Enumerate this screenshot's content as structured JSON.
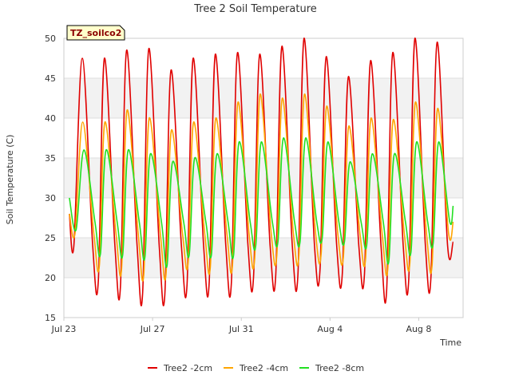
{
  "chart_data": {
    "type": "line",
    "title": "Tree 2 Soil Temperature",
    "xlabel": "Time",
    "ylabel": "Soil Temperature (C)",
    "badge": "TZ_soilco2",
    "ylim": [
      15,
      50
    ],
    "y_ticks": [
      15,
      20,
      25,
      30,
      35,
      40,
      45,
      50
    ],
    "x_range_days": [
      0,
      18
    ],
    "x_ticks": [
      {
        "day": 0,
        "label": "Jul 23"
      },
      {
        "day": 4,
        "label": "Jul 27"
      },
      {
        "day": 8,
        "label": "Jul 31"
      },
      {
        "day": 12,
        "label": "Aug 4"
      },
      {
        "day": 16,
        "label": "Aug 8"
      }
    ],
    "grid": true,
    "band_shading": true,
    "legend": "bottom",
    "series": [
      {
        "name": "Tree2 -2cm",
        "color": "#e00000",
        "points": [
          [
            0.25,
            28
          ],
          [
            0.45,
            24
          ],
          [
            0.83,
            47.5
          ],
          [
            1.3,
            24
          ],
          [
            1.55,
            19.5
          ],
          [
            1.83,
            47.5
          ],
          [
            2.3,
            24
          ],
          [
            2.55,
            18.8
          ],
          [
            2.83,
            48.5
          ],
          [
            3.3,
            24
          ],
          [
            3.55,
            18
          ],
          [
            3.83,
            48.7
          ],
          [
            4.3,
            24
          ],
          [
            4.55,
            17.8
          ],
          [
            4.83,
            46
          ],
          [
            5.3,
            24
          ],
          [
            5.55,
            19
          ],
          [
            5.83,
            47.5
          ],
          [
            6.3,
            24
          ],
          [
            6.55,
            19.2
          ],
          [
            6.83,
            48
          ],
          [
            7.3,
            24
          ],
          [
            7.55,
            19.2
          ],
          [
            7.83,
            48.2
          ],
          [
            8.3,
            24
          ],
          [
            8.55,
            20
          ],
          [
            8.83,
            48
          ],
          [
            9.3,
            24
          ],
          [
            9.55,
            20.2
          ],
          [
            9.83,
            49
          ],
          [
            10.3,
            24
          ],
          [
            10.55,
            20.3
          ],
          [
            10.83,
            50
          ],
          [
            11.3,
            24
          ],
          [
            11.55,
            21
          ],
          [
            11.83,
            47.7
          ],
          [
            12.3,
            24
          ],
          [
            12.55,
            20.3
          ],
          [
            12.83,
            45.2
          ],
          [
            13.3,
            24
          ],
          [
            13.55,
            20.3
          ],
          [
            13.83,
            47.2
          ],
          [
            14.3,
            24
          ],
          [
            14.55,
            18.3
          ],
          [
            14.83,
            48.2
          ],
          [
            15.3,
            24
          ],
          [
            15.55,
            19.7
          ],
          [
            15.83,
            50
          ],
          [
            16.3,
            24
          ],
          [
            16.55,
            20
          ],
          [
            16.83,
            49.5
          ],
          [
            17.3,
            24
          ],
          [
            17.55,
            24.5
          ]
        ]
      },
      {
        "name": "Tree2 -4cm",
        "color": "#ffa500",
        "points": [
          [
            0.25,
            28
          ],
          [
            0.5,
            25.5
          ],
          [
            0.85,
            39.5
          ],
          [
            1.35,
            25.5
          ],
          [
            1.6,
            21.5
          ],
          [
            1.85,
            39.5
          ],
          [
            2.35,
            25.5
          ],
          [
            2.6,
            21
          ],
          [
            2.85,
            41
          ],
          [
            3.35,
            25.5
          ],
          [
            3.6,
            20.3
          ],
          [
            3.85,
            40
          ],
          [
            4.35,
            25.5
          ],
          [
            4.6,
            20.3
          ],
          [
            4.85,
            38.5
          ],
          [
            5.35,
            25.5
          ],
          [
            5.6,
            21.8
          ],
          [
            5.85,
            39.5
          ],
          [
            6.35,
            25.5
          ],
          [
            6.6,
            21.2
          ],
          [
            6.85,
            40
          ],
          [
            7.35,
            25.5
          ],
          [
            7.6,
            21.5
          ],
          [
            7.85,
            42
          ],
          [
            8.35,
            25.5
          ],
          [
            8.6,
            22.3
          ],
          [
            8.85,
            43
          ],
          [
            9.35,
            25.5
          ],
          [
            9.6,
            22.8
          ],
          [
            9.85,
            42.5
          ],
          [
            10.35,
            25.5
          ],
          [
            10.6,
            22.8
          ],
          [
            10.85,
            43
          ],
          [
            11.35,
            25.5
          ],
          [
            11.6,
            23
          ],
          [
            11.85,
            41.5
          ],
          [
            12.35,
            25.5
          ],
          [
            12.6,
            22.5
          ],
          [
            12.85,
            39
          ],
          [
            13.35,
            25.5
          ],
          [
            13.6,
            22.3
          ],
          [
            13.85,
            40
          ],
          [
            14.35,
            25.5
          ],
          [
            14.6,
            21
          ],
          [
            14.85,
            39.8
          ],
          [
            15.35,
            25.5
          ],
          [
            15.6,
            21.8
          ],
          [
            15.85,
            42
          ],
          [
            16.35,
            25.5
          ],
          [
            16.6,
            21.5
          ],
          [
            16.85,
            41.2
          ],
          [
            17.35,
            25.5
          ],
          [
            17.55,
            27
          ]
        ]
      },
      {
        "name": "Tree2 -8cm",
        "color": "#22e022",
        "points": [
          [
            0.25,
            30
          ],
          [
            0.55,
            26
          ],
          [
            0.9,
            36
          ],
          [
            1.4,
            27
          ],
          [
            1.65,
            23
          ],
          [
            1.9,
            36
          ],
          [
            2.4,
            27
          ],
          [
            2.65,
            22.8
          ],
          [
            2.9,
            36
          ],
          [
            3.4,
            27
          ],
          [
            3.65,
            22.5
          ],
          [
            3.9,
            35.5
          ],
          [
            4.4,
            27
          ],
          [
            4.65,
            21.5
          ],
          [
            4.9,
            34.5
          ],
          [
            5.4,
            27
          ],
          [
            5.65,
            22.8
          ],
          [
            5.9,
            35
          ],
          [
            6.4,
            27
          ],
          [
            6.65,
            22.8
          ],
          [
            6.9,
            35.5
          ],
          [
            7.4,
            27
          ],
          [
            7.65,
            22.8
          ],
          [
            7.9,
            37
          ],
          [
            8.4,
            27
          ],
          [
            8.65,
            24
          ],
          [
            8.9,
            37
          ],
          [
            9.4,
            27
          ],
          [
            9.65,
            24.5
          ],
          [
            9.9,
            37.5
          ],
          [
            10.4,
            27
          ],
          [
            10.65,
            24.5
          ],
          [
            10.9,
            37.5
          ],
          [
            11.4,
            27
          ],
          [
            11.65,
            25
          ],
          [
            11.9,
            37
          ],
          [
            12.4,
            27
          ],
          [
            12.65,
            24.5
          ],
          [
            12.9,
            34.5
          ],
          [
            13.4,
            27
          ],
          [
            13.65,
            24
          ],
          [
            13.9,
            35.5
          ],
          [
            14.4,
            27
          ],
          [
            14.65,
            22
          ],
          [
            14.9,
            35.5
          ],
          [
            15.4,
            27
          ],
          [
            15.65,
            23.2
          ],
          [
            15.9,
            37
          ],
          [
            16.4,
            27
          ],
          [
            16.65,
            24.3
          ],
          [
            16.9,
            37
          ],
          [
            17.4,
            27
          ],
          [
            17.55,
            29
          ]
        ]
      }
    ]
  }
}
